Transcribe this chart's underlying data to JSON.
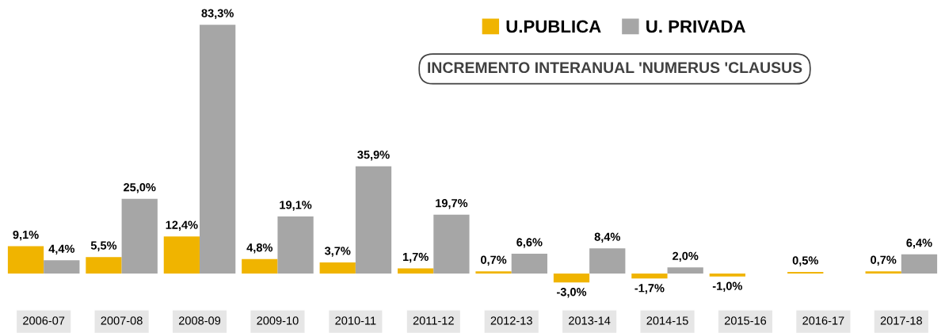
{
  "chart_data": {
    "type": "bar",
    "title": "INCREMENTO INTERANUAL 'NUMERUS 'CLAUSUS",
    "categories": [
      "2006-07",
      "2007-08",
      "2008-09",
      "2009-10",
      "2010-11",
      "2011-12",
      "2012-13",
      "2013-14",
      "2014-15",
      "2015-16",
      "2016-17",
      "2017-18"
    ],
    "series": [
      {
        "name": "U.PUBLICA",
        "color": "#f0b400",
        "values": [
          9.1,
          5.5,
          12.4,
          4.8,
          3.7,
          1.7,
          0.7,
          -3.0,
          -1.7,
          -1.0,
          0.5,
          0.7
        ],
        "value_labels": [
          "9,1%",
          "5,5%",
          "12,4%",
          "4,8%",
          "3,7%",
          "1,7%",
          "0,7%",
          "-3,0%",
          "-1,7%",
          "-1,0%",
          "0,5%",
          "0,7%"
        ]
      },
      {
        "name": "U. PRIVADA",
        "color": "#a6a6a6",
        "values": [
          4.4,
          25.0,
          83.3,
          19.1,
          35.9,
          19.7,
          6.6,
          8.4,
          2.0,
          null,
          null,
          6.4
        ],
        "value_labels": [
          "4,4%",
          "25,0%",
          "83,3%",
          "19,1%",
          "35,9%",
          "19,7%",
          "6,6%",
          "8,4%",
          "2,0%",
          null,
          null,
          "6,4%"
        ]
      }
    ],
    "legend": "top",
    "grid": false
  }
}
